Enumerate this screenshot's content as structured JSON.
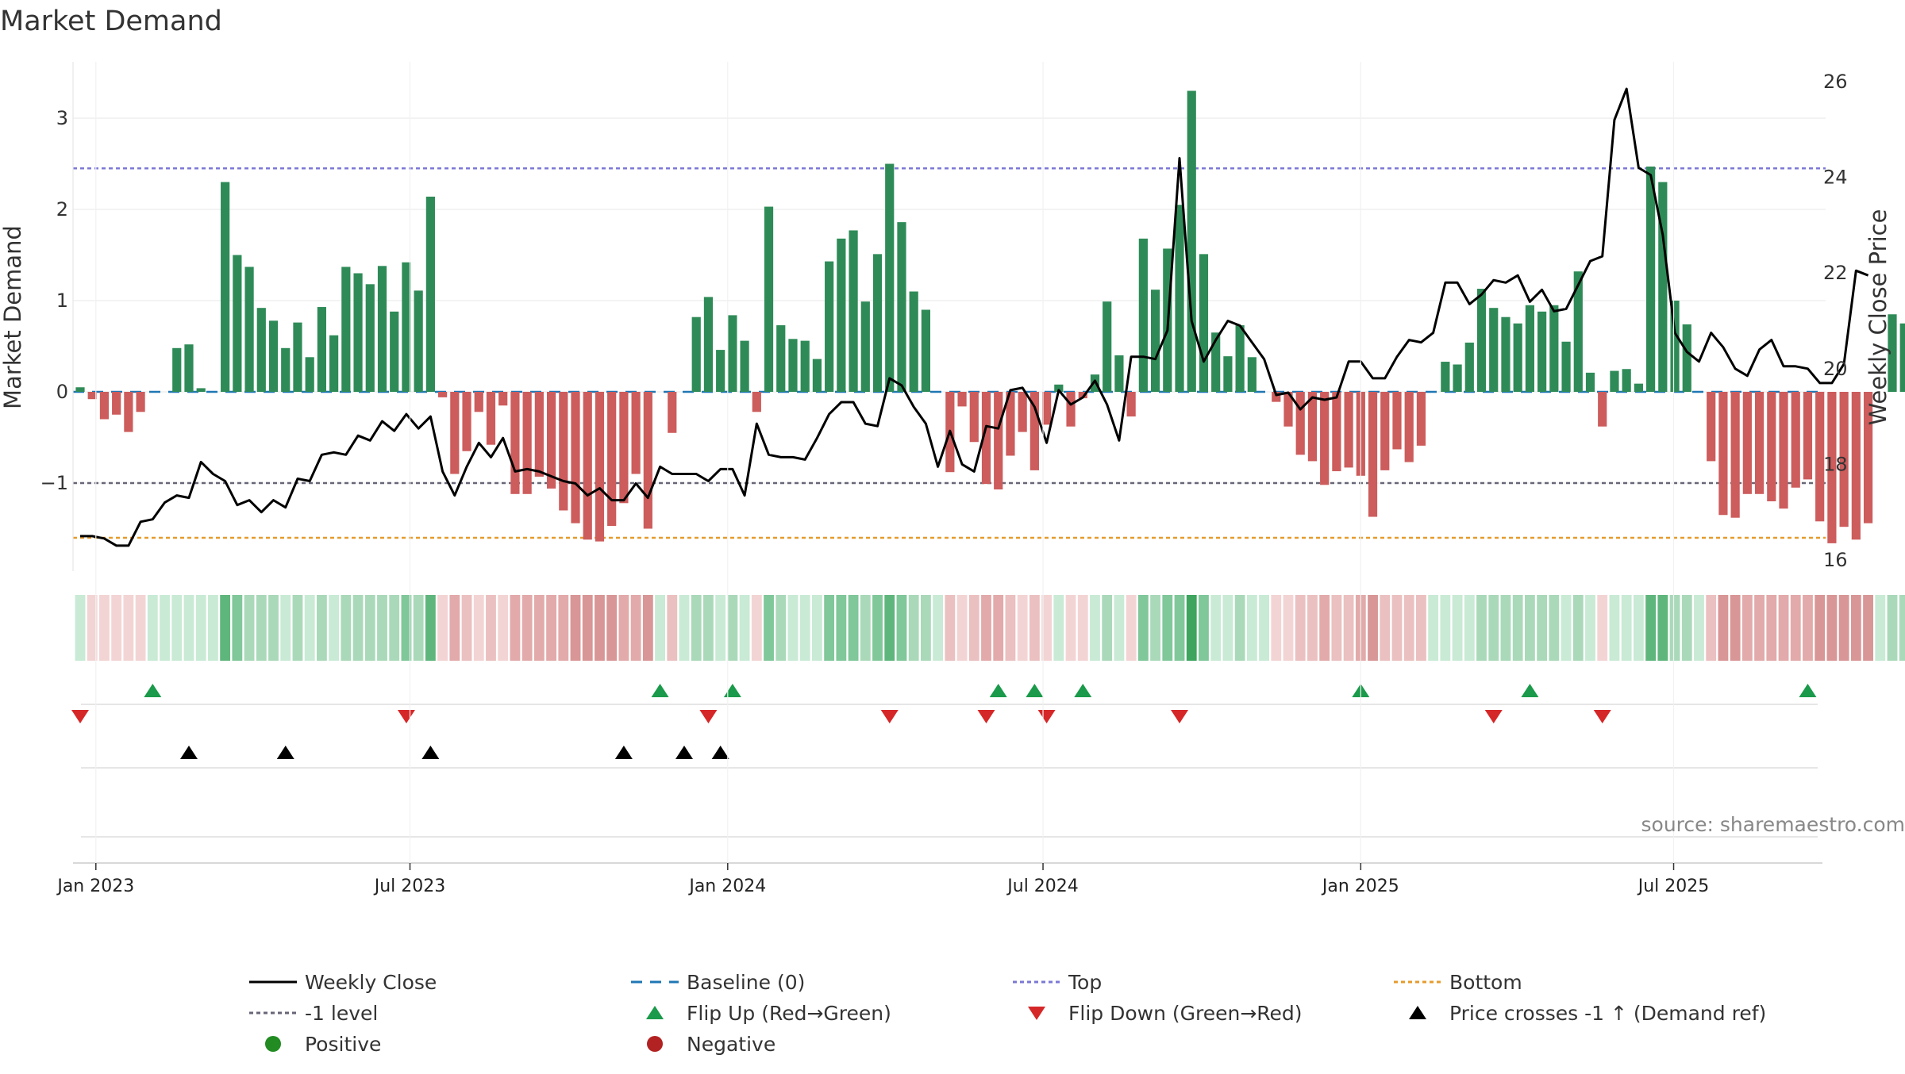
{
  "chart_data": {
    "type": "bar",
    "title": "Market Demand",
    "ylabel": "Market Demand",
    "y2label": "Weekly Close Price",
    "ylim": [
      -2.0,
      3.5
    ],
    "y2lim": [
      16,
      26
    ],
    "yticks": [
      -1,
      0,
      1,
      2,
      3
    ],
    "ytick_labels": [
      "−1",
      "0",
      "1",
      "2",
      "3"
    ],
    "y2ticks": [
      16,
      18,
      20,
      22,
      24,
      26
    ],
    "x_start": "2022-12-23",
    "x_interval_days": 7,
    "x_tick_labels": [
      "Jan 2023",
      "Jul 2023",
      "Jan 2024",
      "Jul 2024",
      "Jan 2025",
      "Jul 2025"
    ],
    "x_tick_index": [
      1.3,
      27.3,
      53.6,
      79.7,
      106.0,
      131.9
    ],
    "levels": {
      "top": 2.45,
      "minus_one": -1.0,
      "bottom": -1.6,
      "baseline": 0
    },
    "colors": {
      "positive": "#2e8b57",
      "negative": "#cd5c5c",
      "close": "#000000",
      "baseline": "#1f77b4",
      "top": "#7b78d6",
      "minus_one": "#666677",
      "bottom": "#e69b2d",
      "flip_up": "#1a9a4a",
      "flip_down": "#d62728",
      "cross": "#000000",
      "pos_dot": "#228b22",
      "neg_dot": "#b22222"
    },
    "series": [
      {
        "name": "Market Demand",
        "values": [
          0.05,
          -0.08,
          -0.3,
          -0.25,
          -0.44,
          -0.22,
          0,
          0,
          0.48,
          0.52,
          0.04,
          0,
          2.3,
          1.5,
          1.37,
          0.92,
          0.78,
          0.48,
          0.76,
          0.38,
          0.93,
          0.62,
          1.37,
          1.3,
          1.18,
          1.38,
          0.88,
          1.42,
          1.11,
          2.14,
          -0.06,
          -0.9,
          -0.65,
          -0.22,
          -0.58,
          -0.15,
          -1.12,
          -1.12,
          -0.93,
          -1.06,
          -1.3,
          -1.44,
          -1.62,
          -1.64,
          -1.47,
          -1.22,
          -0.9,
          -1.5,
          0,
          -0.45,
          0,
          0.82,
          1.04,
          0.46,
          0.84,
          0.56,
          -0.22,
          2.03,
          0.73,
          0.58,
          0.56,
          0.36,
          1.43,
          1.68,
          1.77,
          0.99,
          1.51,
          2.5,
          1.86,
          1.1,
          0.9,
          0,
          -0.88,
          -0.16,
          -0.55,
          -1.01,
          -1.07,
          -0.7,
          -0.44,
          -0.86,
          -0.36,
          0.08,
          -0.38,
          -0.07,
          0.19,
          0.99,
          0.4,
          -0.27,
          1.68,
          1.12,
          1.57,
          2.05,
          3.3,
          1.51,
          0.65,
          0.39,
          0.73,
          0.38,
          0,
          -0.11,
          -0.38,
          -0.69,
          -0.76,
          -1.02,
          -0.87,
          -0.83,
          -0.92,
          -1.37,
          -0.86,
          -0.63,
          -0.77,
          -0.59,
          0,
          0.33,
          0.3,
          0.54,
          1.13,
          0.92,
          0.82,
          0.75,
          0.95,
          0.88,
          0.95,
          0.55,
          1.32,
          0.21,
          -0.38,
          0.23,
          0.25,
          0.09,
          2.47,
          2.3,
          1.0,
          0.74,
          0,
          -0.76,
          -1.35,
          -1.38,
          -1.12,
          -1.12,
          -1.2,
          -1.28,
          -1.05,
          -0.96,
          -1.42,
          -1.66,
          -1.48,
          -1.62,
          -1.44,
          0,
          0.85,
          0.75
        ]
      },
      {
        "name": "Weekly Close",
        "values": [
          16.5,
          16.5,
          16.45,
          16.3,
          16.3,
          16.8,
          16.85,
          17.2,
          17.35,
          17.3,
          18.05,
          17.8,
          17.65,
          17.15,
          17.25,
          17.0,
          17.25,
          17.1,
          17.7,
          17.65,
          18.2,
          18.25,
          18.2,
          18.6,
          18.5,
          18.9,
          18.7,
          19.05,
          18.75,
          19.0,
          17.85,
          17.35,
          17.95,
          18.45,
          18.15,
          18.55,
          17.85,
          17.9,
          17.85,
          17.75,
          17.65,
          17.6,
          17.35,
          17.5,
          17.25,
          17.25,
          17.6,
          17.3,
          17.95,
          17.8,
          17.8,
          17.8,
          17.65,
          17.9,
          17.9,
          17.35,
          18.85,
          18.2,
          18.15,
          18.15,
          18.1,
          18.55,
          19.05,
          19.3,
          19.3,
          18.85,
          18.8,
          19.8,
          19.65,
          19.2,
          18.85,
          17.95,
          18.7,
          18.0,
          17.85,
          18.8,
          18.75,
          19.55,
          19.6,
          19.2,
          18.45,
          19.55,
          19.25,
          19.4,
          19.75,
          19.25,
          18.5,
          20.25,
          20.25,
          20.2,
          20.8,
          24.4,
          21.0,
          20.15,
          20.6,
          21.0,
          20.9,
          20.55,
          20.2,
          19.45,
          19.5,
          19.15,
          19.4,
          19.35,
          19.4,
          20.15,
          20.15,
          19.8,
          19.8,
          20.25,
          20.6,
          20.55,
          20.75,
          21.8,
          21.8,
          21.35,
          21.55,
          21.85,
          21.8,
          21.95,
          21.4,
          21.65,
          21.2,
          21.25,
          21.75,
          22.25,
          22.35,
          25.2,
          25.85,
          24.2,
          24.05,
          22.8,
          20.75,
          20.35,
          20.15,
          20.75,
          20.45,
          20.0,
          19.85,
          20.4,
          20.6,
          20.05,
          20.05,
          20.0,
          19.7,
          19.7,
          20.1,
          22.05,
          21.95
        ]
      }
    ],
    "flip_up_index": [
      6,
      48,
      54,
      76,
      79,
      83,
      106,
      120,
      143
    ],
    "flip_down_index": [
      0,
      27,
      52,
      67,
      75,
      80,
      91,
      117,
      126
    ],
    "price_cross_index": [
      9,
      17,
      29,
      45,
      50,
      53
    ],
    "legend": [
      [
        "Weekly Close",
        "Baseline (0)",
        "Top",
        "Bottom"
      ],
      [
        "-1 level",
        "Flip Up (Red→Green)",
        "Flip Down (Green→Red)",
        "Price crosses -1 ↑ (Demand ref)"
      ],
      [
        "Positive",
        "Negative"
      ]
    ],
    "source": "source: sharemaestro.com",
    "legend_position": "bottom"
  }
}
